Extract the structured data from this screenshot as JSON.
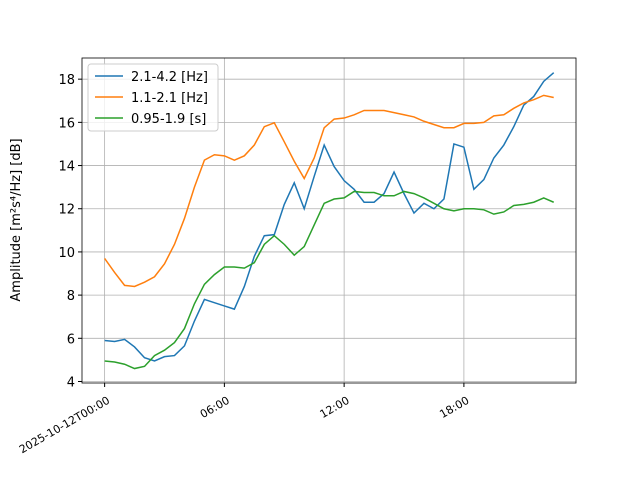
{
  "chart_data": {
    "type": "line",
    "ylabel": "Amplitude [m²s⁴/Hz] [dB]",
    "x": [
      "2025-10-12T00:00",
      "2025-10-12T00:30",
      "2025-10-12T01:00",
      "2025-10-12T01:30",
      "2025-10-12T02:00",
      "2025-10-12T02:30",
      "2025-10-12T03:00",
      "2025-10-12T03:30",
      "2025-10-12T04:00",
      "2025-10-12T04:30",
      "2025-10-12T05:00",
      "2025-10-12T05:30",
      "2025-10-12T06:00",
      "2025-10-12T06:30",
      "2025-10-12T07:00",
      "2025-10-12T07:30",
      "2025-10-12T08:00",
      "2025-10-12T08:30",
      "2025-10-12T09:00",
      "2025-10-12T09:30",
      "2025-10-12T10:00",
      "2025-10-12T10:30",
      "2025-10-12T11:00",
      "2025-10-12T11:30",
      "2025-10-12T12:00",
      "2025-10-12T12:30",
      "2025-10-12T13:00",
      "2025-10-12T13:30",
      "2025-10-12T14:00",
      "2025-10-12T14:30",
      "2025-10-12T15:00",
      "2025-10-12T15:30",
      "2025-10-12T16:00",
      "2025-10-12T16:30",
      "2025-10-12T17:00",
      "2025-10-12T17:30",
      "2025-10-12T18:00",
      "2025-10-12T18:30",
      "2025-10-12T19:00",
      "2025-10-12T19:30",
      "2025-10-12T20:00",
      "2025-10-12T20:30",
      "2025-10-12T21:00",
      "2025-10-12T21:30",
      "2025-10-12T22:00",
      "2025-10-12T22:30"
    ],
    "series": [
      {
        "name": "2.1-4.2 [Hz]",
        "color": "#1f77b4",
        "values": [
          5.9,
          5.85,
          5.95,
          5.6,
          5.1,
          4.95,
          5.15,
          5.2,
          5.65,
          6.8,
          7.8,
          7.65,
          7.5,
          7.35,
          8.4,
          9.8,
          10.75,
          10.8,
          12.2,
          13.2,
          12.0,
          13.5,
          14.95,
          13.95,
          13.3,
          12.9,
          12.3,
          12.3,
          12.7,
          13.7,
          12.7,
          11.8,
          12.25,
          12.0,
          12.45,
          15.0,
          14.85,
          12.9,
          13.35,
          14.35,
          14.95,
          15.8,
          16.8,
          17.2,
          17.9,
          18.3
        ]
      },
      {
        "name": "1.1-2.1 [Hz]",
        "color": "#ff7f0e",
        "values": [
          9.7,
          9.05,
          8.45,
          8.4,
          8.6,
          8.85,
          9.45,
          10.35,
          11.55,
          13.0,
          14.25,
          14.5,
          14.45,
          14.25,
          14.45,
          14.95,
          15.8,
          15.98,
          15.1,
          14.2,
          13.4,
          14.35,
          15.75,
          16.15,
          16.2,
          16.35,
          16.55,
          16.55,
          16.55,
          16.45,
          16.35,
          16.25,
          16.05,
          15.9,
          15.75,
          15.75,
          15.95,
          15.95,
          16.0,
          16.3,
          16.35,
          16.65,
          16.9,
          17.05,
          17.25,
          17.15
        ]
      },
      {
        "name": "0.95-1.9 [s]",
        "color": "#2ca02c",
        "values": [
          4.95,
          4.9,
          4.8,
          4.6,
          4.7,
          5.2,
          5.45,
          5.8,
          6.45,
          7.6,
          8.5,
          8.95,
          9.3,
          9.3,
          9.25,
          9.5,
          10.35,
          10.75,
          10.35,
          9.85,
          10.25,
          11.25,
          12.25,
          12.45,
          12.5,
          12.8,
          12.75,
          12.75,
          12.6,
          12.6,
          12.8,
          12.7,
          12.5,
          12.25,
          12.0,
          11.9,
          12.0,
          12.0,
          11.95,
          11.75,
          11.85,
          12.15,
          12.2,
          12.3,
          12.5,
          12.3
        ]
      }
    ],
    "xlim": [
      "2025-10-11T22:52",
      "2025-10-12T23:37"
    ],
    "xticks": [
      {
        "value": "2025-10-12T00:00",
        "label": "2025-10-12T00:00"
      },
      {
        "value": "2025-10-12T06:00",
        "label": "06:00"
      },
      {
        "value": "2025-10-12T12:00",
        "label": "12:00"
      },
      {
        "value": "2025-10-12T18:00",
        "label": "18:00"
      }
    ],
    "ylim": [
      3.93,
      18.98
    ],
    "yticks": [
      4,
      6,
      8,
      10,
      12,
      14,
      16,
      18
    ],
    "grid": true,
    "legend": "upper left"
  }
}
